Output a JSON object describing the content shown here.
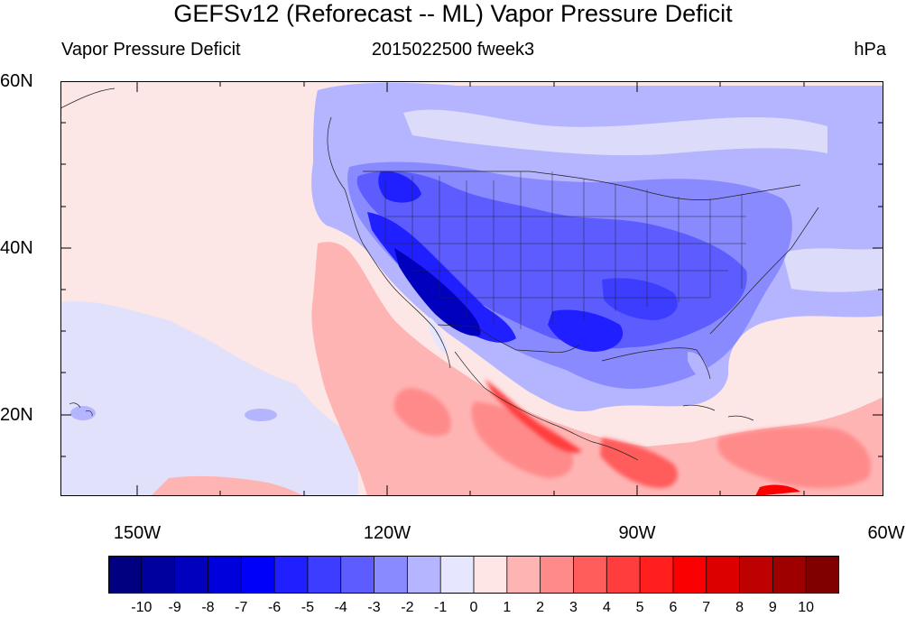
{
  "title": "GEFSv12 (Reforecast -- ML) Vapor Pressure Deficit",
  "subtitle_left": "Vapor Pressure Deficit",
  "subtitle_center": "2015022500 fweek3",
  "subtitle_right": "hPa",
  "lat_labels": [
    "60N",
    "40N",
    "20N"
  ],
  "lon_labels": [
    "150W",
    "120W",
    "90W",
    "60W"
  ],
  "colorbar": {
    "labels": [
      "-10",
      "-9",
      "-8",
      "-7",
      "-6",
      "-5",
      "-4",
      "-3",
      "-2",
      "-1",
      "0",
      "1",
      "2",
      "3",
      "4",
      "5",
      "6",
      "7",
      "8",
      "9",
      "10"
    ],
    "colors": [
      "#000080",
      "#00009e",
      "#0000bd",
      "#0000dc",
      "#0000fa",
      "#1f1fff",
      "#3d3dff",
      "#5c5cff",
      "#8a8aff",
      "#b4b4ff",
      "#e6e6ff",
      "#ffe6e6",
      "#ffb4b4",
      "#ff8a8a",
      "#ff5c5c",
      "#ff3d3d",
      "#ff1f1f",
      "#fa0000",
      "#dc0000",
      "#bd0000",
      "#9e0000",
      "#800000"
    ]
  },
  "field_colors": {
    "near_zero_neg": "#dcdcfa",
    "near_zero_pos": "#fde6e6"
  }
}
